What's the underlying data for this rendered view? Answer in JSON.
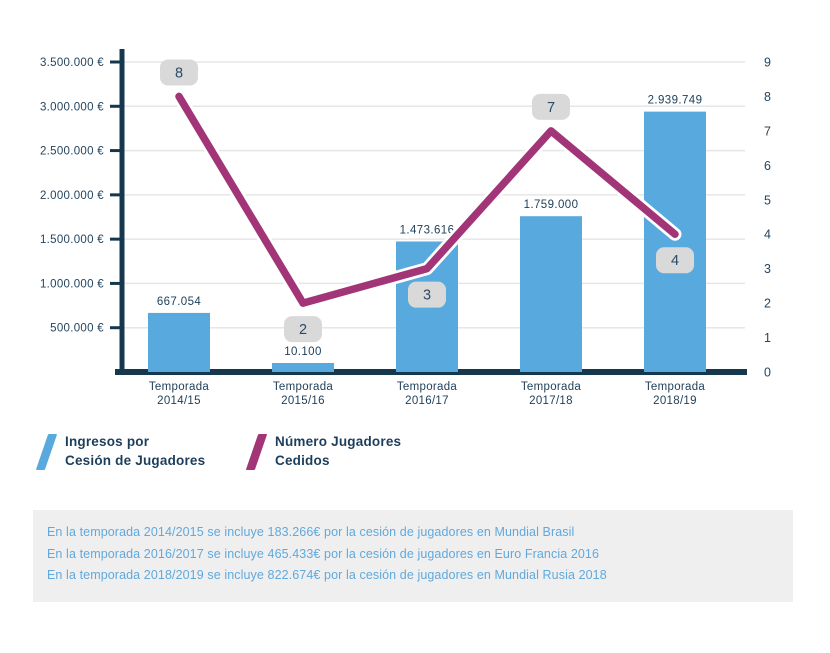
{
  "chart_data": {
    "type": "combo",
    "categories": [
      "Temporada\n2014/15",
      "Temporada\n2015/16",
      "Temporada\n2016/17",
      "Temporada\n2017/18",
      "Temporada\n2018/19"
    ],
    "series": [
      {
        "name": "Ingresos por Cesión de Jugadores",
        "type": "bar",
        "axis": "left",
        "color": "#58a9dd",
        "values": [
          667054,
          10100,
          1473616,
          1759000,
          2939749
        ],
        "value_labels": [
          "667.054",
          "10.100",
          "1.473.616",
          "1.759.000",
          "2.939.749"
        ]
      },
      {
        "name": "Número Jugadores Cedidos",
        "type": "line",
        "axis": "right",
        "color": "#a23577",
        "values": [
          8,
          2,
          3,
          7,
          4
        ],
        "point_labels": [
          "8",
          "2",
          "3",
          "7",
          "4"
        ]
      }
    ],
    "left_axis": {
      "min": 0,
      "max": 3500000,
      "step": 500000,
      "tick_labels": [
        "500.000 €",
        "1.000.000 €",
        "1.500.000 €",
        "2.000.000 €",
        "2.500.000 €",
        "3.000.000 €",
        "3.500.000 €"
      ]
    },
    "right_axis": {
      "min": 0,
      "max": 9,
      "step": 1,
      "tick_labels": [
        "0",
        "1",
        "2",
        "3",
        "4",
        "5",
        "6",
        "7",
        "8",
        "9"
      ]
    },
    "grid": true,
    "legend_position": "bottom-left"
  },
  "legend": {
    "items": [
      {
        "line1": "Ingresos por",
        "line2": "Cesión de Jugadores",
        "color": "#58a9dd"
      },
      {
        "line1": "Número Jugadores",
        "line2": "Cedidos",
        "color": "#a23577"
      }
    ]
  },
  "notes": {
    "items": [
      "En la temporada 2014/2015 se incluye 183.266€ por la cesión de jugadores en Mundial Brasil",
      "En la temporada 2016/2017 se incluye 465.433€ por la cesión de jugadores en Euro Francia 2016",
      "En la temporada 2018/2019 se incluye 822.674€ por la cesión de jugadores en Mundial Rusia 2018"
    ]
  },
  "colors": {
    "bar": "#58a9dd",
    "line": "#a23577",
    "line_outline": "#ffffff",
    "axis": "#16384e",
    "tick_text": "#24455f",
    "value_text": "#1d3e58",
    "grid": "#e6e6e6",
    "badge_bg": "#d9d9d9",
    "badge_text": "#2b4a63",
    "note_bg": "#f0efef",
    "note_text": "#5fa9dd"
  }
}
